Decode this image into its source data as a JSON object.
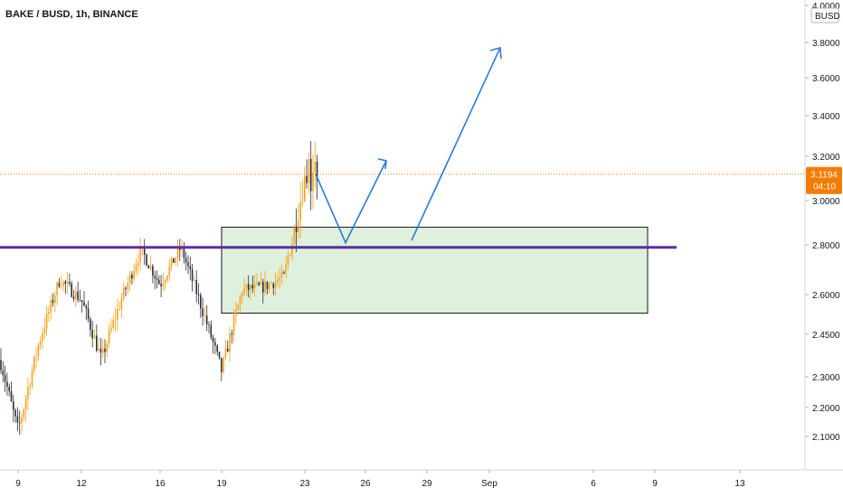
{
  "chart_data": {
    "type": "candlestick",
    "title": "BAKE / BUSD, 1h, BINANCE",
    "quote_currency": "BUSD",
    "y_ticks": [
      "2.1000",
      "2.2000",
      "2.3000",
      "2.4500",
      "2.6000",
      "2.8000",
      "3.0000",
      "3.2000",
      "3.4000",
      "3.6000",
      "3.8000",
      "4.0000"
    ],
    "x_ticks": [
      "9",
      "12",
      "16",
      "19",
      "23",
      "26",
      "29",
      "Sep",
      "6",
      "9",
      "13"
    ],
    "last_price": "3.1194",
    "countdown": "04:10",
    "support_line": 2.79,
    "zone": {
      "top": 2.88,
      "bottom": 2.53,
      "from": "19",
      "to": "9"
    },
    "projection": [
      {
        "date": "23",
        "value": 3.12
      },
      {
        "date": "25",
        "value": 2.81
      },
      {
        "date": "27",
        "value": 3.18
      }
    ],
    "projection_arrow": [
      {
        "date": "28",
        "value": 2.82
      },
      {
        "date": "1",
        "value": 3.77
      }
    ],
    "price_path": [
      {
        "date": "8",
        "value": 2.36
      },
      {
        "date": "9",
        "value": 2.12
      },
      {
        "date": "10",
        "value": 2.42
      },
      {
        "date": "11",
        "value": 2.66
      },
      {
        "date": "12",
        "value": 2.58
      },
      {
        "date": "13",
        "value": 2.36
      },
      {
        "date": "14",
        "value": 2.58
      },
      {
        "date": "15",
        "value": 2.78
      },
      {
        "date": "16",
        "value": 2.64
      },
      {
        "date": "17",
        "value": 2.79
      },
      {
        "date": "18",
        "value": 2.56
      },
      {
        "date": "19",
        "value": 2.32
      },
      {
        "date": "20",
        "value": 2.62
      },
      {
        "date": "21",
        "value": 2.63
      },
      {
        "date": "22",
        "value": 2.67
      },
      {
        "date": "23",
        "value": 3.12
      }
    ],
    "colors": {
      "up": "#f7a21b",
      "down": "#2a2e39",
      "support": "#5b2ea6",
      "zone_fill": "#dff0dc",
      "zone_border": "#131722",
      "projection": "#2a7bd5",
      "price_line": "#f57c00",
      "badge": "#f57c00"
    }
  }
}
